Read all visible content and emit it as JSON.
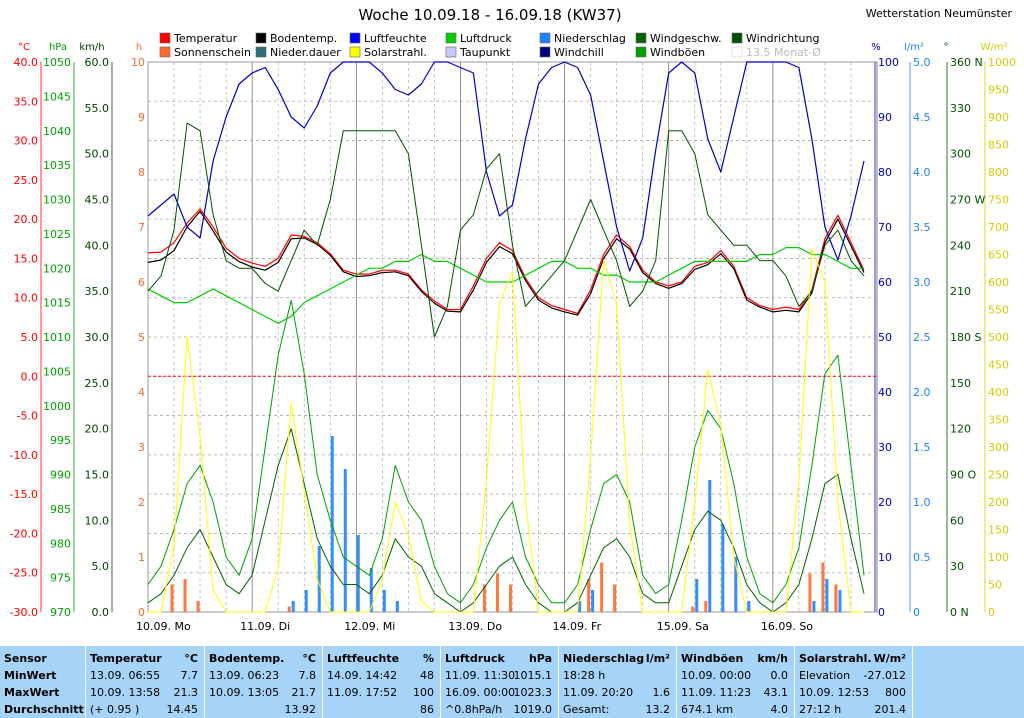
{
  "header": {
    "title": "Woche 10.09.18 - 16.09.18 (KW37)",
    "station": "Wetterstation Neumünster"
  },
  "legend": [
    {
      "label": "Temperatur",
      "color": "#ff0000"
    },
    {
      "label": "Bodentemp.",
      "color": "#000000"
    },
    {
      "label": "Luftfeuchte",
      "color": "#0000ff"
    },
    {
      "label": "Luftdruck",
      "color": "#00cc00"
    },
    {
      "label": "Niederschlag",
      "color": "#1e82ff"
    },
    {
      "label": "Windgeschw.",
      "color": "#006400"
    },
    {
      "label": "Windrichtung",
      "color": "#005000"
    },
    {
      "label": "Sonnenschein",
      "color": "#ff6a2a"
    },
    {
      "label": "Nieder.dauer",
      "color": "#2f6f6f"
    },
    {
      "label": "Solarstrahl.",
      "color": "#ffff00"
    },
    {
      "label": "Taupunkt",
      "color": "#c8c8ff"
    },
    {
      "label": "Windchill",
      "color": "#000080"
    },
    {
      "label": "Windböen",
      "color": "#00a000"
    },
    {
      "label": "13.5 Monat-Ø",
      "color": "#cccccc",
      "disabled": true
    }
  ],
  "axes": {
    "temp": {
      "unit": "°C",
      "color": "#ff0000",
      "ticks": [
        "40.0",
        "35.0",
        "30.0",
        "25.0",
        "20.0",
        "15.0",
        "10.0",
        "5.0",
        "0.0",
        "-5.0",
        "-10.0",
        "-15.0",
        "-20.0",
        "-25.0",
        "-30.0"
      ]
    },
    "pressure": {
      "unit": "hPa",
      "color": "#00a000",
      "ticks": [
        "1050",
        "1045",
        "1040",
        "1035",
        "1030",
        "1025",
        "1020",
        "1015",
        "1010",
        "1005",
        "1000",
        "995",
        "990",
        "985",
        "980",
        "975",
        "970"
      ]
    },
    "wind": {
      "unit": "km/h",
      "color": "#004000",
      "ticks": [
        "60.0",
        "55.0",
        "50.0",
        "45.0",
        "40.0",
        "35.0",
        "30.0",
        "25.0",
        "20.0",
        "15.0",
        "10.0",
        "5.0",
        "0.0"
      ]
    },
    "sun": {
      "unit": "h",
      "color": "#ff6a2a",
      "ticks": [
        "10",
        "9",
        "8",
        "7",
        "6",
        "5",
        "4",
        "3",
        "2",
        "1",
        "0"
      ]
    },
    "humidity": {
      "unit": "%",
      "color": "#0000c0",
      "ticks": [
        "100",
        "90",
        "80",
        "70",
        "60",
        "50",
        "40",
        "30",
        "20",
        "10",
        "0"
      ]
    },
    "rain": {
      "unit": "l/m²",
      "color": "#1e82ff",
      "ticks": [
        "5.0",
        "4.5",
        "4.0",
        "3.5",
        "3.0",
        "2.5",
        "2.0",
        "1.5",
        "1.0",
        "0.5",
        "0"
      ]
    },
    "winddir": {
      "unit": "°",
      "color": "#005000",
      "ticks": [
        "360 N",
        "330",
        "300",
        "270 W",
        "240",
        "210",
        "180 S",
        "150",
        "120",
        "90 O",
        "60",
        "30",
        "0 N"
      ]
    },
    "solar": {
      "unit": "W/m²",
      "color": "#d8c800",
      "ticks": [
        "1000",
        "950",
        "900",
        "850",
        "800",
        "750",
        "700",
        "650",
        "600",
        "550",
        "500",
        "450",
        "400",
        "350",
        "300",
        "250",
        "200",
        "150",
        "100",
        "50",
        "0"
      ]
    }
  },
  "days": [
    "10.09. Mo",
    "11.09. Di",
    "12.09. Mi",
    "13.09. Do",
    "14.09. Fr",
    "15.09. Sa",
    "16.09. So"
  ],
  "chart_data": {
    "type": "line",
    "title": "Woche 10.09.18 - 16.09.18 (KW37)",
    "x": [
      0,
      0.125,
      0.25,
      0.375,
      0.5,
      0.625,
      0.75,
      0.875,
      1,
      1.125,
      1.25,
      1.375,
      1.5,
      1.625,
      1.75,
      1.875,
      2,
      2.125,
      2.25,
      2.375,
      2.5,
      2.625,
      2.75,
      2.875,
      3,
      3.125,
      3.25,
      3.375,
      3.5,
      3.625,
      3.75,
      3.875,
      4,
      4.125,
      4.25,
      4.375,
      4.5,
      4.625,
      4.75,
      4.875,
      5,
      5.125,
      5.25,
      5.375,
      5.5,
      5.625,
      5.75,
      5.875,
      6,
      6.125,
      6.25,
      6.375,
      6.5,
      6.625,
      6.75,
      6.875
    ],
    "series": [
      {
        "name": "Temperatur",
        "unit": "°C",
        "color": "#ff0000",
        "width": 1.2,
        "values": [
          15.7,
          15.8,
          17.0,
          19.5,
          21.3,
          19.0,
          16.3,
          15.0,
          14.4,
          14.0,
          15.0,
          18.0,
          17.8,
          17.0,
          15.6,
          13.5,
          13.0,
          13.0,
          13.5,
          13.5,
          13.0,
          11.0,
          9.6,
          8.5,
          8.5,
          11.5,
          15.0,
          17.0,
          16.0,
          12.5,
          10.0,
          9.0,
          8.5,
          8.0,
          11.0,
          15.5,
          18.0,
          16.5,
          13.5,
          12.0,
          11.5,
          12.0,
          14.0,
          14.5,
          16.0,
          14.0,
          10.0,
          9.0,
          8.5,
          8.8,
          8.5,
          11.0,
          17.5,
          20.5,
          17.0,
          13.5
        ]
      },
      {
        "name": "Bodentemp.",
        "unit": "°C",
        "color": "#000000",
        "width": 1.2,
        "values": [
          14.5,
          14.8,
          16.0,
          19.0,
          21.0,
          18.5,
          15.8,
          14.6,
          13.9,
          13.5,
          14.5,
          17.5,
          17.6,
          16.8,
          15.4,
          13.3,
          12.7,
          12.8,
          13.2,
          13.3,
          12.8,
          10.8,
          9.3,
          8.3,
          8.2,
          11.0,
          14.5,
          16.5,
          15.6,
          12.2,
          9.7,
          8.7,
          8.2,
          7.8,
          10.5,
          15.0,
          17.5,
          16.2,
          13.2,
          11.8,
          11.2,
          11.8,
          13.6,
          14.2,
          15.6,
          13.7,
          9.7,
          8.8,
          8.2,
          8.4,
          8.2,
          10.6,
          17.0,
          20.0,
          16.6,
          13.2
        ]
      },
      {
        "name": "Luftfeuchte",
        "unit": "%",
        "color": "#0000cc",
        "width": 1.2,
        "values": [
          72,
          74,
          76,
          70,
          68,
          82,
          90,
          96,
          98,
          99,
          95,
          90,
          88,
          92,
          98,
          100,
          100,
          100,
          98,
          95,
          94,
          96,
          100,
          100,
          99,
          98,
          80,
          72,
          74,
          86,
          96,
          99,
          100,
          99,
          94,
          82,
          70,
          62,
          68,
          84,
          98,
          100,
          98,
          86,
          80,
          90,
          100,
          100,
          100,
          100,
          99,
          86,
          70,
          64,
          72,
          82
        ]
      },
      {
        "name": "Luftdruck",
        "unit": "hPa",
        "color": "#00cc00",
        "width": 1.2,
        "values": [
          1017,
          1016,
          1015,
          1015,
          1016,
          1017,
          1016,
          1015,
          1014,
          1013,
          1012,
          1013,
          1015,
          1016,
          1017,
          1018,
          1019,
          1020,
          1020,
          1021,
          1021,
          1022,
          1021,
          1021,
          1020,
          1019,
          1018,
          1018,
          1018,
          1019,
          1020,
          1021,
          1021,
          1020,
          1020,
          1019,
          1019,
          1018,
          1018,
          1018,
          1019,
          1020,
          1021,
          1021,
          1021,
          1021,
          1021,
          1022,
          1022,
          1023,
          1023,
          1022,
          1022,
          1021,
          1020,
          1020
        ]
      },
      {
        "name": "Windgeschw.",
        "unit": "km/h",
        "color": "#006400",
        "width": 1.0,
        "values": [
          1,
          2,
          4,
          7,
          9,
          6,
          3,
          2,
          4,
          10,
          16,
          20,
          14,
          8,
          5,
          3,
          3,
          2,
          4,
          8,
          6,
          5,
          2,
          1,
          0,
          1,
          3,
          5,
          6,
          3,
          1,
          0,
          0,
          1,
          4,
          7,
          8,
          6,
          2,
          1,
          1,
          5,
          9,
          11,
          10,
          7,
          3,
          1,
          0,
          1,
          3,
          8,
          14,
          15,
          8,
          2
        ]
      },
      {
        "name": "Windböen",
        "unit": "km/h",
        "color": "#00a000",
        "width": 1.0,
        "values": [
          3,
          5,
          9,
          14,
          16,
          12,
          6,
          4,
          8,
          18,
          28,
          34,
          26,
          15,
          10,
          6,
          5,
          4,
          8,
          16,
          12,
          10,
          5,
          2,
          1,
          3,
          7,
          10,
          12,
          6,
          3,
          1,
          1,
          3,
          9,
          14,
          15,
          12,
          4,
          2,
          3,
          10,
          18,
          22,
          20,
          14,
          6,
          2,
          1,
          3,
          7,
          16,
          26,
          28,
          16,
          4
        ]
      },
      {
        "name": "Windrichtung",
        "unit": "°",
        "color": "#005000",
        "width": 1.0,
        "values": [
          210,
          220,
          250,
          320,
          315,
          260,
          230,
          225,
          225,
          215,
          210,
          230,
          250,
          240,
          270,
          315,
          315,
          315,
          315,
          315,
          300,
          240,
          180,
          200,
          250,
          260,
          290,
          300,
          240,
          200,
          210,
          220,
          230,
          250,
          270,
          250,
          230,
          200,
          210,
          230,
          315,
          315,
          300,
          260,
          250,
          240,
          240,
          230,
          230,
          220,
          200,
          210,
          240,
          250,
          230,
          220
        ]
      },
      {
        "name": "Solarstrahl.",
        "unit": "W/m²",
        "color": "#ffff00",
        "width": 1.0,
        "values": [
          0,
          0,
          120,
          500,
          320,
          40,
          0,
          0,
          0,
          0,
          80,
          380,
          220,
          60,
          0,
          0,
          0,
          0,
          60,
          200,
          140,
          20,
          0,
          0,
          0,
          0,
          240,
          560,
          620,
          200,
          0,
          0,
          0,
          0,
          280,
          640,
          560,
          160,
          0,
          0,
          0,
          0,
          200,
          440,
          340,
          100,
          0,
          0,
          0,
          0,
          240,
          660,
          600,
          200,
          0,
          0
        ]
      }
    ],
    "bars": [
      {
        "name": "Niederschlag",
        "unit": "l/m²",
        "color": "#1e82ff",
        "values": [
          0,
          0,
          0,
          0,
          0,
          0,
          0,
          0,
          0,
          0,
          0,
          0.1,
          0.2,
          0.6,
          1.6,
          1.3,
          0.7,
          0.4,
          0.2,
          0.1,
          0,
          0,
          0,
          0,
          0,
          0,
          0,
          0,
          0,
          0,
          0,
          0,
          0,
          0.1,
          0.2,
          0,
          0,
          0,
          0,
          0,
          0,
          0,
          0.3,
          1.2,
          0.8,
          0.5,
          0.1,
          0,
          0,
          0,
          0,
          0.1,
          0.3,
          0.2,
          0,
          0
        ]
      },
      {
        "name": "Sonnenschein",
        "unit": "h",
        "color": "#ff6a2a",
        "values": [
          0,
          0,
          0.5,
          0.6,
          0.2,
          0,
          0,
          0,
          0,
          0,
          0,
          0.1,
          0,
          0,
          0,
          0,
          0,
          0,
          0,
          0,
          0,
          0,
          0,
          0,
          0,
          0,
          0.5,
          0.7,
          0.5,
          0,
          0,
          0,
          0,
          0,
          0.6,
          0.9,
          0.5,
          0,
          0,
          0,
          0,
          0,
          0.1,
          0.2,
          0,
          0,
          0,
          0,
          0,
          0,
          0,
          0.7,
          0.9,
          0.5,
          0,
          0
        ]
      }
    ],
    "ylim_temp": [
      -30,
      40
    ],
    "grid": true,
    "xlabel": "",
    "ylabel": ""
  },
  "stats": {
    "columns": [
      {
        "header": "Sensor",
        "unit": "",
        "rows": [
          [
            "MinWert",
            ""
          ],
          [
            "MaxWert",
            ""
          ],
          [
            "Durchschnitt",
            ""
          ]
        ]
      },
      {
        "header": "Temperatur",
        "unit": "°C",
        "rows": [
          [
            "13.09.  06:55",
            "7.7"
          ],
          [
            "10.09.  13:58",
            "21.3"
          ],
          [
            "(+ 0.95 )",
            "14.45"
          ]
        ]
      },
      {
        "header": "Bodentemp.",
        "unit": "°C",
        "rows": [
          [
            "13.09.  06:23",
            "7.8"
          ],
          [
            "10.09.  13:05",
            "21.7"
          ],
          [
            "",
            "13.92"
          ]
        ]
      },
      {
        "header": "Luftfeuchte",
        "unit": "%",
        "rows": [
          [
            "14.09.  14:42",
            "48"
          ],
          [
            "11.09.  17:52",
            "100"
          ],
          [
            "",
            "86"
          ]
        ]
      },
      {
        "header": "Luftdruck",
        "unit": "hPa",
        "rows": [
          [
            "11.09.  11:30",
            "1015.1"
          ],
          [
            "16.09.  00:00",
            "1023.3"
          ],
          [
            "^0.8hPa/h",
            "1019.0"
          ]
        ]
      },
      {
        "header": "Niederschlag",
        "unit": "l/m²",
        "rows": [
          [
            "18:28 h",
            ""
          ],
          [
            "11.09.  20:20",
            "1.6"
          ],
          [
            "Gesamt:",
            "13.2"
          ]
        ]
      },
      {
        "header": "Windböen",
        "unit": "km/h",
        "rows": [
          [
            "10.09.  00:00",
            "0.0"
          ],
          [
            "11.09.  11:23",
            "43.1"
          ],
          [
            "674.1 km",
            "4.0"
          ]
        ]
      },
      {
        "header": "Solarstrahl.",
        "unit": "W/m²",
        "rows": [
          [
            "Elevation",
            "-27.012"
          ],
          [
            "10.09.  12:53",
            "800"
          ],
          [
            "27:12 h",
            "201.4"
          ]
        ]
      }
    ]
  }
}
